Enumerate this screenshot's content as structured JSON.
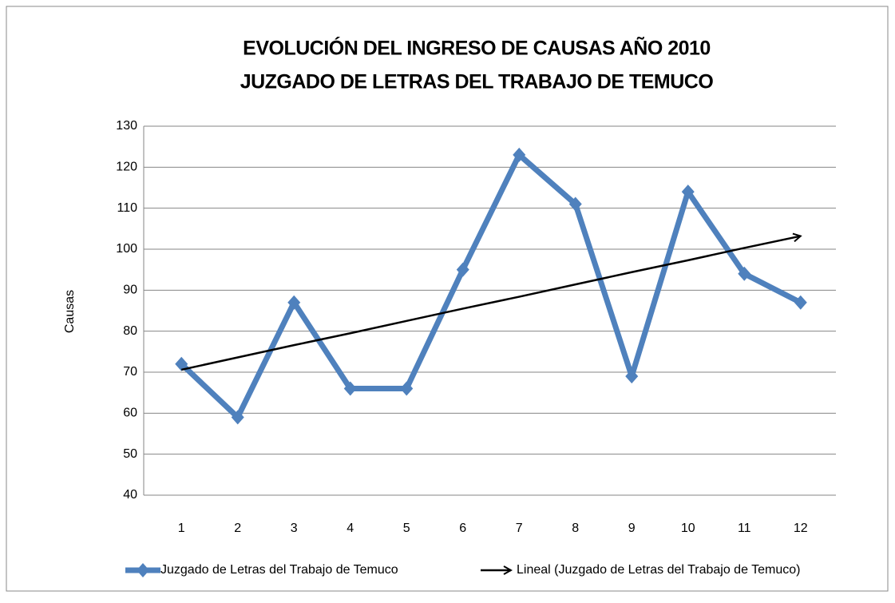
{
  "chart_data": {
    "type": "line",
    "title": [
      "EVOLUCIÓN DEL INGRESO DE CAUSAS AÑO 2010",
      "JUZGADO DE LETRAS DEL TRABAJO DE TEMUCO"
    ],
    "y_label": "Causas",
    "categories": [
      "1",
      "2",
      "3",
      "4",
      "5",
      "6",
      "7",
      "8",
      "9",
      "10",
      "11",
      "12"
    ],
    "series": [
      {
        "name": "Juzgado de Letras del Trabajo de Temuco",
        "color": "#4f81bd",
        "values": [
          72,
          59,
          87,
          66,
          66,
          95,
          123,
          111,
          69,
          114,
          94,
          87
        ]
      },
      {
        "name": "Lineal (Juzgado de Letras del Trabajo de Temuco)",
        "color": "#000000",
        "trendline": true,
        "values": [
          70.6,
          73.6,
          76.6,
          79.5,
          82.5,
          85.5,
          88.4,
          91.4,
          94.4,
          97.3,
          100.3,
          103.2
        ]
      }
    ],
    "ylim": [
      40,
      130
    ],
    "yticks": [
      40,
      50,
      60,
      70,
      80,
      90,
      100,
      110,
      120,
      130
    ],
    "grid": true,
    "legend": "bottom"
  }
}
